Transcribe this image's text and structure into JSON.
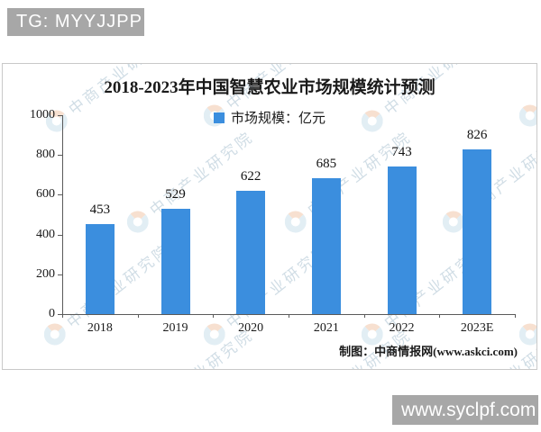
{
  "overlay": {
    "tg_badge": "TG: MYYJJPP",
    "site_badge": "www.syclpf.com"
  },
  "watermark": {
    "text": "中商产业研究院"
  },
  "chart": {
    "title": "2018-2023年中国智慧农业市场规模统计预测",
    "legend_label": "市场规模：亿元",
    "credit": "制图：中商情报网(www.askci.com)"
  },
  "chart_data": {
    "type": "bar",
    "title": "2018-2023年中国智慧农业市场规模统计预测",
    "categories": [
      "2018",
      "2019",
      "2020",
      "2021",
      "2022",
      "2023E"
    ],
    "values": [
      453,
      529,
      622,
      685,
      743,
      826
    ],
    "series_name": "市场规模：亿元",
    "xlabel": "",
    "ylabel": "",
    "ylim": [
      0,
      1000
    ],
    "ytick_interval": 200,
    "bar_color": "#3b8ede",
    "grid": false,
    "legend_position": "top"
  }
}
